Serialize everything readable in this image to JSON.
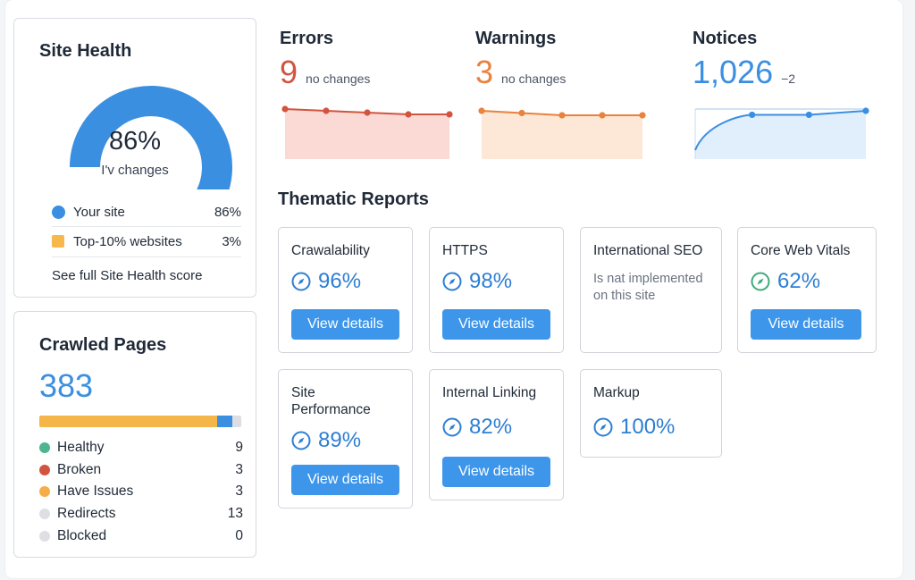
{
  "site_health": {
    "title": "Site Health",
    "percent": "86%",
    "subtitle": "I'v changes",
    "gauge_fraction": 0.86,
    "legend": [
      {
        "label": "Your site",
        "value": "86%",
        "color": "#3b8fe0"
      },
      {
        "label": "Top-10% websites",
        "value": "3%",
        "color": "#f7b84b"
      }
    ],
    "link": "See full Site Health score"
  },
  "crawled_pages": {
    "title": "Crawled Pages",
    "total": "383",
    "rows": [
      {
        "label": "Healthy",
        "value": "9",
        "color": "#4fb58f"
      },
      {
        "label": "Broken",
        "value": "3",
        "color": "#d2543f"
      },
      {
        "label": "Have Issues",
        "value": "3",
        "color": "#f5ad47"
      },
      {
        "label": "Redirects",
        "value": "13",
        "color": "#dedfe2"
      },
      {
        "label": "Blocked",
        "value": "0",
        "color": "#dedfe2"
      }
    ],
    "bar_segments": [
      {
        "fraction": 0.88,
        "color": "#f5b649"
      },
      {
        "fraction": 0.075,
        "color": "#3b8fe0"
      },
      {
        "fraction": 0.045,
        "color": "#dcdee2"
      }
    ]
  },
  "metrics": {
    "errors": {
      "title": "Errors",
      "value": "9",
      "note": "no changes",
      "color": "#d2543f",
      "fill": "#fbdad6",
      "trend": [
        5,
        4,
        3,
        2,
        2
      ]
    },
    "warnings": {
      "title": "Warnings",
      "value": "3",
      "note": "no changes",
      "color": "#e8823f",
      "fill": "#fde7d6",
      "trend": [
        5,
        4,
        3,
        3,
        3
      ]
    },
    "notices": {
      "title": "Notices",
      "value": "1,026",
      "note": "−2",
      "color": "#3b8fe0",
      "fill": "#e1eefb",
      "trend": [
        1,
        8,
        8,
        10
      ]
    }
  },
  "thematic": {
    "title": "Thematic Reports",
    "button_label": "View details",
    "reports": [
      {
        "title": "Crawalability",
        "score": "96%",
        "icon": "compass-icon",
        "color": "#2d7fd3"
      },
      {
        "title": "HTTPS",
        "score": "98%",
        "icon": "compass-icon",
        "color": "#2d7fd3"
      },
      {
        "title": "International SEO",
        "message": "Is nat implemented on this site"
      },
      {
        "title": "Core Web Vitals",
        "score": "62%",
        "icon": "compass-icon",
        "color": "#2d7fd3",
        "icon_color": "#3faa7a"
      },
      {
        "title": "Site Performance",
        "score": "89%",
        "icon": "compass-icon",
        "color": "#2d7fd3"
      },
      {
        "title": "Internal Linking",
        "score": "82%",
        "icon": "compass-icon",
        "color": "#2d7fd3"
      },
      {
        "title": "Markup",
        "score": "100%",
        "icon": "compass-icon",
        "color": "#2d7fd3"
      }
    ]
  }
}
